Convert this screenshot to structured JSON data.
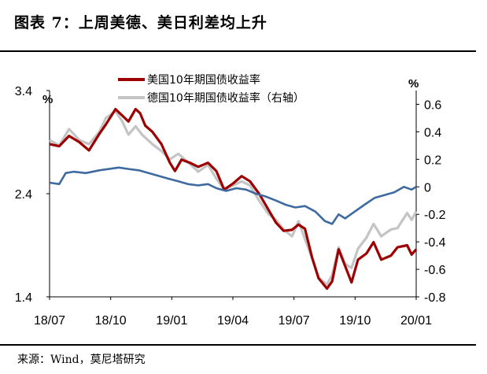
{
  "figure": {
    "title": "图表 7：上周美德、美日利差均上升",
    "source": "来源：Wind，莫尼塔研究"
  },
  "chart_data": {
    "type": "line",
    "x_ticks": [
      "18/07",
      "18/10",
      "19/01",
      "19/04",
      "19/07",
      "19/10",
      "20/01"
    ],
    "x_range": [
      "2018-06-25",
      "2020-01-13"
    ],
    "left_axis": {
      "unit": "%",
      "ylim": [
        1.4,
        3.4
      ],
      "ticks": [
        "1.4",
        "2.4",
        "3.4"
      ]
    },
    "right_axis": {
      "unit": "%",
      "ylim": [
        -0.8,
        0.7
      ],
      "ticks": [
        "0.6",
        "0.4",
        "0.2",
        "0",
        "-0.2",
        "-0.4",
        "-0.6",
        "-0.8"
      ]
    },
    "legend_position": "top-center",
    "series": [
      {
        "name": "美国10年期国债收益率",
        "axis": "left",
        "color": "#9c0000",
        "points": [
          [
            "2018-06-25",
            2.88
          ],
          [
            "2018-07-10",
            2.86
          ],
          [
            "2018-07-25",
            2.96
          ],
          [
            "2018-08-10",
            2.9
          ],
          [
            "2018-08-25",
            2.82
          ],
          [
            "2018-09-10",
            2.98
          ],
          [
            "2018-09-20",
            3.07
          ],
          [
            "2018-10-05",
            3.22
          ],
          [
            "2018-10-15",
            3.16
          ],
          [
            "2018-10-25",
            3.1
          ],
          [
            "2018-11-05",
            3.22
          ],
          [
            "2018-11-12",
            3.18
          ],
          [
            "2018-11-20",
            3.06
          ],
          [
            "2018-12-01",
            3.0
          ],
          [
            "2018-12-15",
            2.88
          ],
          [
            "2018-12-28",
            2.7
          ],
          [
            "2019-01-05",
            2.62
          ],
          [
            "2019-01-15",
            2.73
          ],
          [
            "2019-01-28",
            2.7
          ],
          [
            "2019-02-10",
            2.66
          ],
          [
            "2019-02-25",
            2.7
          ],
          [
            "2019-03-10",
            2.62
          ],
          [
            "2019-03-22",
            2.44
          ],
          [
            "2019-04-05",
            2.5
          ],
          [
            "2019-04-18",
            2.57
          ],
          [
            "2019-05-01",
            2.52
          ],
          [
            "2019-05-15",
            2.4
          ],
          [
            "2019-05-30",
            2.24
          ],
          [
            "2019-06-10",
            2.12
          ],
          [
            "2019-06-22",
            2.04
          ],
          [
            "2019-07-05",
            2.05
          ],
          [
            "2019-07-15",
            2.1
          ],
          [
            "2019-07-25",
            2.06
          ],
          [
            "2019-08-05",
            1.78
          ],
          [
            "2019-08-15",
            1.58
          ],
          [
            "2019-08-28",
            1.48
          ],
          [
            "2019-09-05",
            1.55
          ],
          [
            "2019-09-15",
            1.86
          ],
          [
            "2019-09-25",
            1.7
          ],
          [
            "2019-10-05",
            1.54
          ],
          [
            "2019-10-15",
            1.76
          ],
          [
            "2019-10-28",
            1.82
          ],
          [
            "2019-11-08",
            1.93
          ],
          [
            "2019-11-20",
            1.76
          ],
          [
            "2019-12-05",
            1.8
          ],
          [
            "2019-12-15",
            1.88
          ],
          [
            "2019-12-30",
            1.9
          ],
          [
            "2020-01-06",
            1.81
          ],
          [
            "2020-01-13",
            1.86
          ]
        ]
      },
      {
        "name": "德国10年期国债收益率（右轴）",
        "axis": "right",
        "color": "#c4c4c4",
        "points": [
          [
            "2018-06-25",
            0.34
          ],
          [
            "2018-07-10",
            0.3
          ],
          [
            "2018-07-25",
            0.42
          ],
          [
            "2018-08-10",
            0.34
          ],
          [
            "2018-08-25",
            0.31
          ],
          [
            "2018-09-10",
            0.4
          ],
          [
            "2018-09-20",
            0.5
          ],
          [
            "2018-10-05",
            0.55
          ],
          [
            "2018-10-15",
            0.48
          ],
          [
            "2018-10-25",
            0.38
          ],
          [
            "2018-11-05",
            0.44
          ],
          [
            "2018-11-15",
            0.38
          ],
          [
            "2018-12-01",
            0.31
          ],
          [
            "2018-12-15",
            0.26
          ],
          [
            "2018-12-28",
            0.2
          ],
          [
            "2019-01-10",
            0.24
          ],
          [
            "2019-01-25",
            0.18
          ],
          [
            "2019-02-10",
            0.11
          ],
          [
            "2019-02-25",
            0.16
          ],
          [
            "2019-03-10",
            0.06
          ],
          [
            "2019-03-22",
            -0.02
          ],
          [
            "2019-04-05",
            0.01
          ],
          [
            "2019-04-18",
            0.04
          ],
          [
            "2019-05-01",
            0.01
          ],
          [
            "2019-05-15",
            -0.1
          ],
          [
            "2019-05-30",
            -0.2
          ],
          [
            "2019-06-10",
            -0.24
          ],
          [
            "2019-06-22",
            -0.31
          ],
          [
            "2019-07-05",
            -0.36
          ],
          [
            "2019-07-15",
            -0.25
          ],
          [
            "2019-07-25",
            -0.38
          ],
          [
            "2019-08-05",
            -0.52
          ],
          [
            "2019-08-15",
            -0.66
          ],
          [
            "2019-08-28",
            -0.71
          ],
          [
            "2019-09-05",
            -0.64
          ],
          [
            "2019-09-15",
            -0.44
          ],
          [
            "2019-09-25",
            -0.56
          ],
          [
            "2019-10-05",
            -0.59
          ],
          [
            "2019-10-15",
            -0.45
          ],
          [
            "2019-10-28",
            -0.37
          ],
          [
            "2019-11-08",
            -0.27
          ],
          [
            "2019-11-20",
            -0.36
          ],
          [
            "2019-12-05",
            -0.31
          ],
          [
            "2019-12-15",
            -0.3
          ],
          [
            "2019-12-30",
            -0.19
          ],
          [
            "2020-01-06",
            -0.24
          ],
          [
            "2020-01-13",
            -0.18
          ]
        ]
      },
      {
        "name": "",
        "axis": "right",
        "color": "#3f6aa0",
        "points": [
          [
            "2018-06-25",
            0.03
          ],
          [
            "2018-07-10",
            0.02
          ],
          [
            "2018-07-20",
            0.1
          ],
          [
            "2018-08-01",
            0.11
          ],
          [
            "2018-08-20",
            0.1
          ],
          [
            "2018-09-10",
            0.12
          ],
          [
            "2018-09-25",
            0.13
          ],
          [
            "2018-10-10",
            0.14
          ],
          [
            "2018-10-25",
            0.13
          ],
          [
            "2018-11-10",
            0.12
          ],
          [
            "2018-11-25",
            0.1
          ],
          [
            "2018-12-10",
            0.08
          ],
          [
            "2018-12-25",
            0.06
          ],
          [
            "2019-01-10",
            0.04
          ],
          [
            "2019-01-25",
            0.02
          ],
          [
            "2019-02-10",
            0.01
          ],
          [
            "2019-02-25",
            0.02
          ],
          [
            "2019-03-10",
            -0.01
          ],
          [
            "2019-03-25",
            -0.03
          ],
          [
            "2019-04-10",
            -0.01
          ],
          [
            "2019-04-25",
            -0.02
          ],
          [
            "2019-05-10",
            -0.05
          ],
          [
            "2019-05-25",
            -0.07
          ],
          [
            "2019-06-10",
            -0.1
          ],
          [
            "2019-06-25",
            -0.13
          ],
          [
            "2019-07-10",
            -0.15
          ],
          [
            "2019-07-25",
            -0.14
          ],
          [
            "2019-08-10",
            -0.18
          ],
          [
            "2019-08-25",
            -0.25
          ],
          [
            "2019-09-05",
            -0.27
          ],
          [
            "2019-09-15",
            -0.2
          ],
          [
            "2019-09-25",
            -0.23
          ],
          [
            "2019-10-10",
            -0.18
          ],
          [
            "2019-10-25",
            -0.13
          ],
          [
            "2019-11-10",
            -0.08
          ],
          [
            "2019-11-25",
            -0.06
          ],
          [
            "2019-12-10",
            -0.04
          ],
          [
            "2019-12-25",
            0.0
          ],
          [
            "2020-01-06",
            -0.02
          ],
          [
            "2020-01-13",
            0.0
          ]
        ]
      }
    ]
  }
}
